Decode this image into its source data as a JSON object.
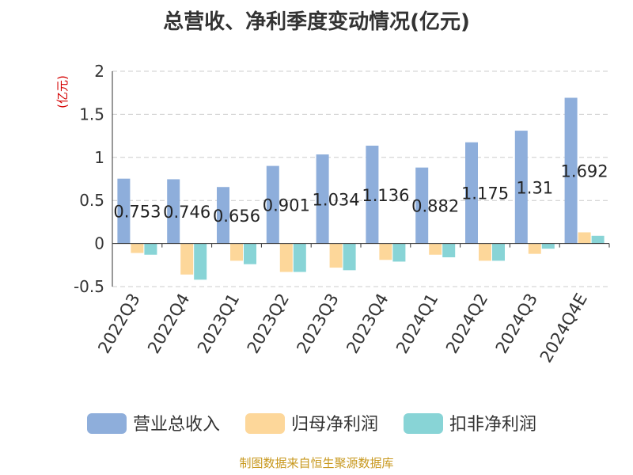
{
  "chart_data": {
    "type": "bar",
    "title": "总营收、净利季度变动情况(亿元)",
    "unit_label": "(亿元)",
    "categories": [
      "2022Q3",
      "2022Q4",
      "2023Q1",
      "2023Q2",
      "2023Q3",
      "2023Q4",
      "2024Q1",
      "2024Q2",
      "2024Q3",
      "2024Q4E"
    ],
    "series": [
      {
        "name": "营业总收入",
        "color": "#8eaedb",
        "values": [
          0.753,
          0.746,
          0.656,
          0.901,
          1.034,
          1.136,
          0.882,
          1.175,
          1.31,
          1.692
        ],
        "labels": [
          "0.753",
          "0.746",
          "0.656",
          "0.901",
          "1.034",
          "1.136",
          "0.882",
          "1.175",
          "1.31",
          "1.692"
        ]
      },
      {
        "name": "归母净利润",
        "color": "#fdd79a",
        "values": [
          -0.11,
          -0.36,
          -0.2,
          -0.33,
          -0.28,
          -0.19,
          -0.13,
          -0.2,
          -0.12,
          0.13
        ]
      },
      {
        "name": "扣非净利润",
        "color": "#88d4d6",
        "values": [
          -0.13,
          -0.42,
          -0.24,
          -0.33,
          -0.31,
          -0.21,
          -0.16,
          -0.2,
          -0.06,
          0.09
        ]
      }
    ],
    "yticks": [
      "-0.5",
      "0",
      "0.5",
      "1",
      "1.5",
      "2"
    ],
    "ylim": [
      -0.5,
      2
    ],
    "grid": true,
    "legend_position": "bottom"
  },
  "footer": {
    "source": "制图数据来自恒生聚源数据库"
  }
}
